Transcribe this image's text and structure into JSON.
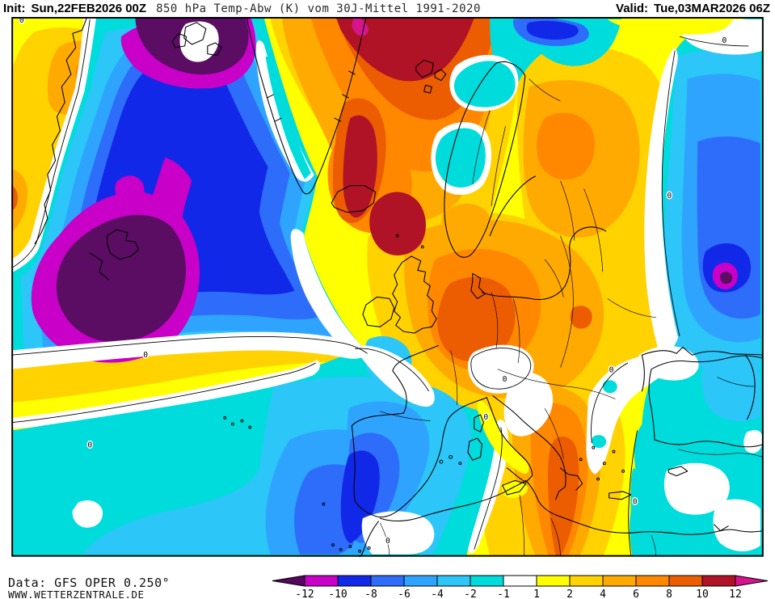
{
  "header": {
    "init_label": "Init:",
    "init_value": "Sun,22FEB2026 00Z",
    "title": "850 hPa Temp-Abw (K) vom 30J-Mittel 1991-2020",
    "valid_label": "Valid:",
    "valid_value": "Tue,03MAR2026 06Z"
  },
  "footer": {
    "data_source": "Data: GFS OPER 0.250°",
    "website": "WWW.WETTERZENTRALE.DE"
  },
  "legend": {
    "boundaries": [
      "-12",
      "-10",
      "-8",
      "-6",
      "-4",
      "-2",
      "-1",
      "1",
      "2",
      "4",
      "6",
      "8",
      "10",
      "12"
    ],
    "colors": [
      "#c800c8",
      "#1228e8",
      "#2e6cfa",
      "#2fa4ff",
      "#2cc6f8",
      "#00dcdc",
      "#ffffff",
      "#ffff00",
      "#ffd200",
      "#ffaa00",
      "#ff8800",
      "#ec5c00",
      "#b01226"
    ],
    "arrow_left_color": "#570560",
    "arrow_right_color": "#d6148c"
  },
  "palette": {
    "yellow": "#ffff00",
    "gold": "#ffd200",
    "amber": "#ffaa00",
    "orange": "#ff8800",
    "dkorange": "#ec5c00",
    "dkred": "#b01226",
    "pink": "#d6148c",
    "cyan": "#00dcdc",
    "blue4": "#2cc6f8",
    "blue3": "#2fa4ff",
    "blue2": "#2e6cfa",
    "blue1": "#1228e8",
    "magenta": "#c800c8",
    "purple": "#5a0d62"
  },
  "map": {
    "kind": "filled contour temperature-anomaly map",
    "region": "Europe / North Atlantic",
    "contour_label": "0",
    "features": [
      {
        "area": "northwest-atlantic-south-of-greenland",
        "anomaly": "below -12 K"
      },
      {
        "area": "davis-strait-baffin",
        "anomaly": "below -12 K"
      },
      {
        "area": "east-greenland-iceland-norwegian-sea",
        "anomaly": "+8 to +12 K"
      },
      {
        "area": "central-europe-germany-benelux",
        "anomaly": "+8 to +10 K"
      },
      {
        "area": "scandinavia-baltic",
        "anomaly": "+4 to +8 K"
      },
      {
        "area": "northwest-russia",
        "anomaly": "+4 to +8 K"
      },
      {
        "area": "eastern-canada",
        "anomaly": "+2 to +6 K"
      },
      {
        "area": "iberia-western-mediterranean",
        "anomaly": "-4 to -8 K"
      },
      {
        "area": "subtropical-atlantic-canaries",
        "anomaly": "-4 to -10 K"
      },
      {
        "area": "western-russia-caucasus",
        "anomaly": "-6 to -12 K"
      },
      {
        "area": "anatolia-eastern-mediterranean-egypt",
        "anomaly": "-2 to -6 K"
      },
      {
        "area": "tunisia-libya",
        "anomaly": "+4 to +8 K"
      }
    ]
  }
}
